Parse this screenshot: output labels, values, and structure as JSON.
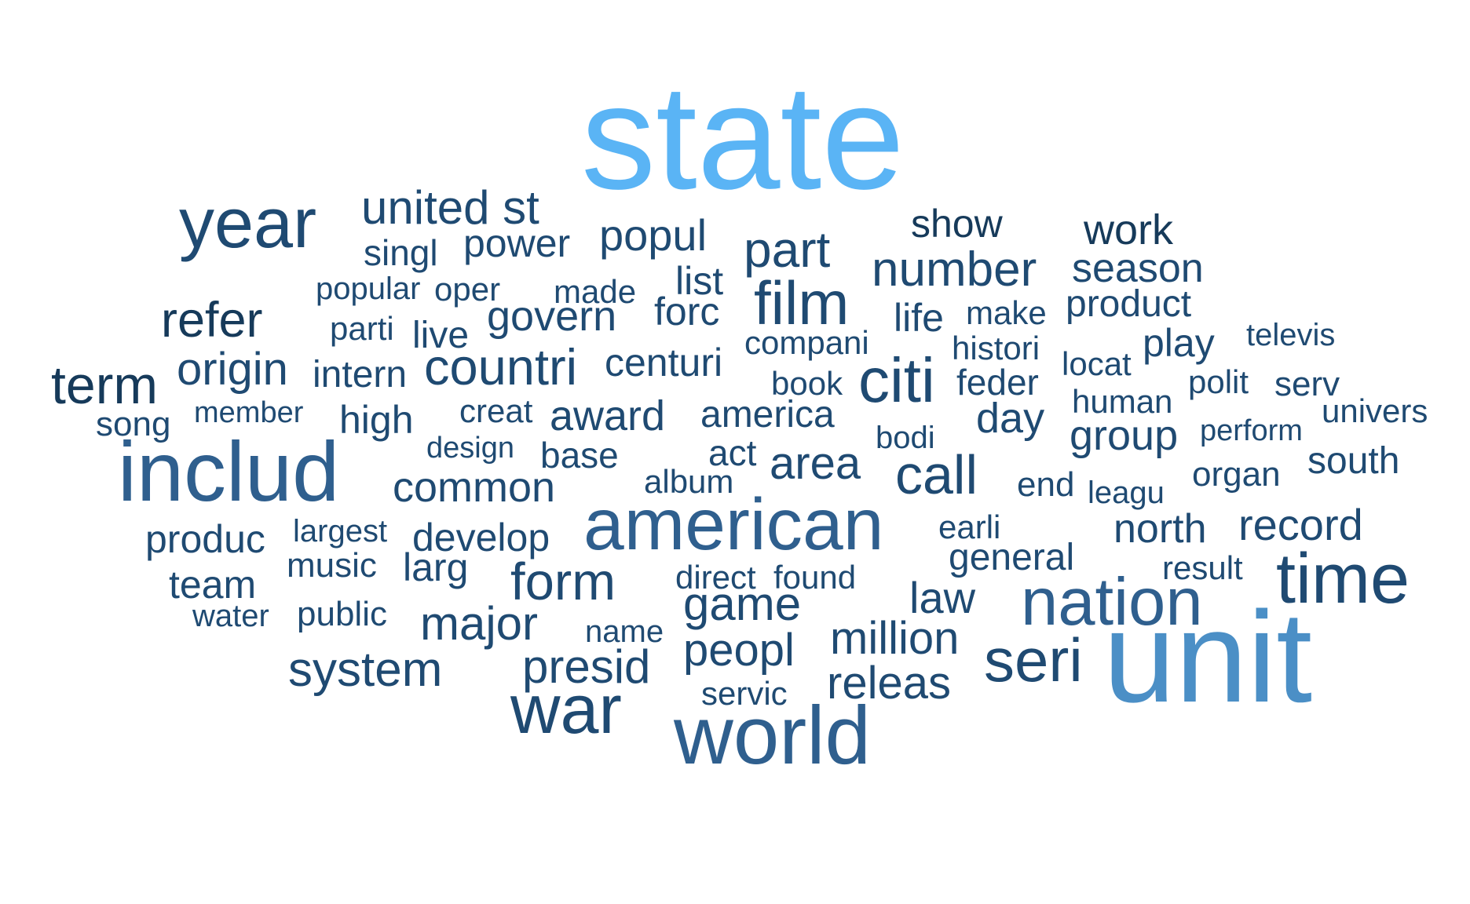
{
  "palette": {
    "lightest": "#5ab4f5",
    "light": "#4b8fc6",
    "medium": "#2f5f8e",
    "dark": "#1f4a72",
    "darkest": "#163a5a"
  },
  "words": [
    {
      "text": "state",
      "weight": 10,
      "shade": "lightest"
    },
    {
      "text": "unit",
      "weight": 9,
      "shade": "light"
    },
    {
      "text": "includ",
      "weight": 7,
      "shade": "medium"
    },
    {
      "text": "american",
      "weight": 6,
      "shade": "medium"
    },
    {
      "text": "world",
      "weight": 6,
      "shade": "medium"
    },
    {
      "text": "nation",
      "weight": 5,
      "shade": "medium"
    },
    {
      "text": "year",
      "weight": 5,
      "shade": "dark"
    },
    {
      "text": "time",
      "weight": 5,
      "shade": "dark"
    },
    {
      "text": "war",
      "weight": 5,
      "shade": "dark"
    },
    {
      "text": "film",
      "weight": 4,
      "shade": "dark"
    },
    {
      "text": "citi",
      "weight": 4,
      "shade": "dark"
    },
    {
      "text": "seri",
      "weight": 4,
      "shade": "dark"
    },
    {
      "text": "call",
      "weight": 4,
      "shade": "dark"
    },
    {
      "text": "united st",
      "weight": 3,
      "shade": "dark"
    },
    {
      "text": "part",
      "weight": 3,
      "shade": "dark"
    },
    {
      "text": "number",
      "weight": 3,
      "shade": "dark"
    },
    {
      "text": "countri",
      "weight": 3,
      "shade": "dark"
    },
    {
      "text": "form",
      "weight": 3,
      "shade": "dark"
    },
    {
      "text": "game",
      "weight": 3,
      "shade": "dark"
    },
    {
      "text": "presid",
      "weight": 3,
      "shade": "dark"
    },
    {
      "text": "major",
      "weight": 3,
      "shade": "dark"
    },
    {
      "text": "term",
      "weight": 3,
      "shade": "darkest"
    },
    {
      "text": "refer",
      "weight": 3,
      "shade": "darkest"
    },
    {
      "text": "origin",
      "weight": 3,
      "shade": "dark"
    },
    {
      "text": "system",
      "weight": 3,
      "shade": "dark"
    },
    {
      "text": "million",
      "weight": 3,
      "shade": "dark"
    },
    {
      "text": "area",
      "weight": 3,
      "shade": "dark"
    },
    {
      "text": "peopl",
      "weight": 3,
      "shade": "dark"
    },
    {
      "text": "releas",
      "weight": 3,
      "shade": "dark"
    },
    {
      "text": "record",
      "weight": 3,
      "shade": "dark"
    },
    {
      "text": "popul",
      "weight": 2,
      "shade": "dark"
    },
    {
      "text": "show",
      "weight": 2,
      "shade": "darkest"
    },
    {
      "text": "work",
      "weight": 2,
      "shade": "darkest"
    },
    {
      "text": "power",
      "weight": 2,
      "shade": "dark"
    },
    {
      "text": "singl",
      "weight": 2,
      "shade": "dark"
    },
    {
      "text": "season",
      "weight": 2,
      "shade": "dark"
    },
    {
      "text": "list",
      "weight": 2,
      "shade": "dark"
    },
    {
      "text": "govern",
      "weight": 2,
      "shade": "dark"
    },
    {
      "text": "forc",
      "weight": 2,
      "shade": "dark"
    },
    {
      "text": "product",
      "weight": 2,
      "shade": "dark"
    },
    {
      "text": "centuri",
      "weight": 2,
      "shade": "dark"
    },
    {
      "text": "life",
      "weight": 2,
      "shade": "dark"
    },
    {
      "text": "play",
      "weight": 2,
      "shade": "dark"
    },
    {
      "text": "award",
      "weight": 2,
      "shade": "dark"
    },
    {
      "text": "america",
      "weight": 2,
      "shade": "dark"
    },
    {
      "text": "day",
      "weight": 2,
      "shade": "dark"
    },
    {
      "text": "group",
      "weight": 2,
      "shade": "dark"
    },
    {
      "text": "common",
      "weight": 2,
      "shade": "dark"
    },
    {
      "text": "develop",
      "weight": 2,
      "shade": "dark"
    },
    {
      "text": "larg",
      "weight": 2,
      "shade": "dark"
    },
    {
      "text": "north",
      "weight": 2,
      "shade": "dark"
    },
    {
      "text": "general",
      "weight": 2,
      "shade": "dark"
    },
    {
      "text": "law",
      "weight": 2,
      "shade": "dark"
    },
    {
      "text": "south",
      "weight": 2,
      "shade": "dark"
    },
    {
      "text": "produc",
      "weight": 2,
      "shade": "dark"
    },
    {
      "text": "team",
      "weight": 2,
      "shade": "dark"
    },
    {
      "text": "high",
      "weight": 2,
      "shade": "dark"
    },
    {
      "text": "base",
      "weight": 2,
      "shade": "dark"
    },
    {
      "text": "feder",
      "weight": 2,
      "shade": "dark"
    },
    {
      "text": "intern",
      "weight": 2,
      "shade": "dark"
    },
    {
      "text": "oper",
      "weight": 1,
      "shade": "dark"
    },
    {
      "text": "made",
      "weight": 1,
      "shade": "dark"
    },
    {
      "text": "popular",
      "weight": 1,
      "shade": "dark"
    },
    {
      "text": "parti",
      "weight": 1,
      "shade": "dark"
    },
    {
      "text": "live",
      "weight": 1,
      "shade": "dark"
    },
    {
      "text": "make",
      "weight": 1,
      "shade": "dark"
    },
    {
      "text": "compani",
      "weight": 1,
      "shade": "dark"
    },
    {
      "text": "histori",
      "weight": 1,
      "shade": "dark"
    },
    {
      "text": "televis",
      "weight": 1,
      "shade": "dark"
    },
    {
      "text": "locat",
      "weight": 1,
      "shade": "dark"
    },
    {
      "text": "book",
      "weight": 1,
      "shade": "dark"
    },
    {
      "text": "polit",
      "weight": 1,
      "shade": "dark"
    },
    {
      "text": "serv",
      "weight": 1,
      "shade": "dark"
    },
    {
      "text": "human",
      "weight": 1,
      "shade": "dark"
    },
    {
      "text": "univers",
      "weight": 1,
      "shade": "dark"
    },
    {
      "text": "song",
      "weight": 1,
      "shade": "dark"
    },
    {
      "text": "member",
      "weight": 1,
      "shade": "dark"
    },
    {
      "text": "creat",
      "weight": 1,
      "shade": "dark"
    },
    {
      "text": "bodi",
      "weight": 1,
      "shade": "dark"
    },
    {
      "text": "perform",
      "weight": 1,
      "shade": "dark"
    },
    {
      "text": "design",
      "weight": 1,
      "shade": "dark"
    },
    {
      "text": "act",
      "weight": 1,
      "shade": "dark"
    },
    {
      "text": "album",
      "weight": 1,
      "shade": "dark"
    },
    {
      "text": "end",
      "weight": 1,
      "shade": "dark"
    },
    {
      "text": "leagu",
      "weight": 1,
      "shade": "dark"
    },
    {
      "text": "organ",
      "weight": 1,
      "shade": "dark"
    },
    {
      "text": "largest",
      "weight": 1,
      "shade": "dark"
    },
    {
      "text": "earli",
      "weight": 1,
      "shade": "dark"
    },
    {
      "text": "music",
      "weight": 1,
      "shade": "dark"
    },
    {
      "text": "direct",
      "weight": 1,
      "shade": "dark"
    },
    {
      "text": "found",
      "weight": 1,
      "shade": "dark"
    },
    {
      "text": "result",
      "weight": 1,
      "shade": "dark"
    },
    {
      "text": "water",
      "weight": 1,
      "shade": "dark"
    },
    {
      "text": "public",
      "weight": 1,
      "shade": "dark"
    },
    {
      "text": "name",
      "weight": 1,
      "shade": "dark"
    },
    {
      "text": "servic",
      "weight": 1,
      "shade": "dark"
    }
  ]
}
